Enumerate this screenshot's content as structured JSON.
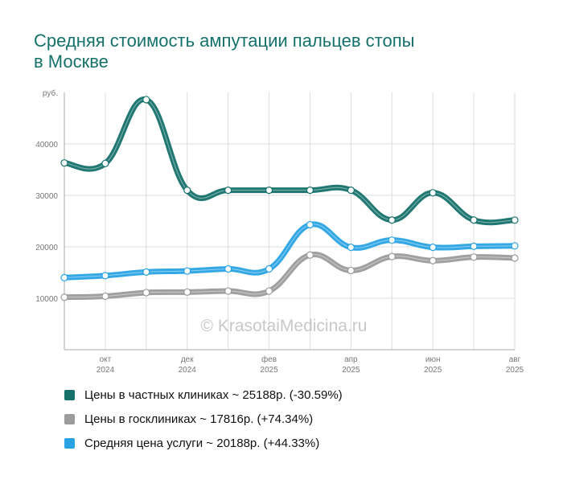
{
  "title_lines": [
    "Средняя стоимость ампутации пальцев стопы",
    "в Москве"
  ],
  "watermark": "© KrasotaiMedicina.ru",
  "chart_data": {
    "type": "line",
    "x": [
      "2024-09",
      "2024-10",
      "2024-11",
      "2024-12",
      "2025-01",
      "2025-02",
      "2025-03",
      "2025-04",
      "2025-05",
      "2025-06",
      "2025-07",
      "2025-08"
    ],
    "x_ticks": [
      {
        "month": "окт",
        "year": "2024",
        "index": 1
      },
      {
        "month": "дек",
        "year": "2024",
        "index": 3
      },
      {
        "month": "фев",
        "year": "2025",
        "index": 5
      },
      {
        "month": "апр",
        "year": "2025",
        "index": 7
      },
      {
        "month": "июн",
        "year": "2025",
        "index": 9
      },
      {
        "month": "авг",
        "year": "2025",
        "index": 11
      }
    ],
    "ylabel": "руб.",
    "yticks": [
      10000,
      20000,
      30000,
      40000
    ],
    "ylim": [
      0,
      50000
    ],
    "grid": true,
    "series": [
      {
        "name": "Цены в частных клиниках",
        "color": "#15716a",
        "values": [
          36300,
          36200,
          48600,
          31000,
          31000,
          31000,
          31000,
          31000,
          25200,
          30500,
          25200,
          25188
        ]
      },
      {
        "name": "Цены в госклиниках",
        "color": "#9b9b9b",
        "values": [
          10200,
          10400,
          11100,
          11200,
          11400,
          11400,
          18400,
          15400,
          18100,
          17300,
          18000,
          17816
        ]
      },
      {
        "name": "Средняя цена услуги",
        "color": "#29a3e4",
        "values": [
          14000,
          14400,
          15100,
          15300,
          15700,
          15700,
          24300,
          19900,
          21300,
          19900,
          20100,
          20188
        ]
      }
    ]
  },
  "legend": [
    {
      "label": "Цены в частных клиниках ~ 25188р. (-30.59%)",
      "color": "#15716a"
    },
    {
      "label": "Цены в госклиниках ~ 17816р. (+74.34%)",
      "color": "#9b9b9b"
    },
    {
      "label": "Средняя цена услуги ~ 20188р. (+44.33%)",
      "color": "#29a3e4"
    }
  ]
}
